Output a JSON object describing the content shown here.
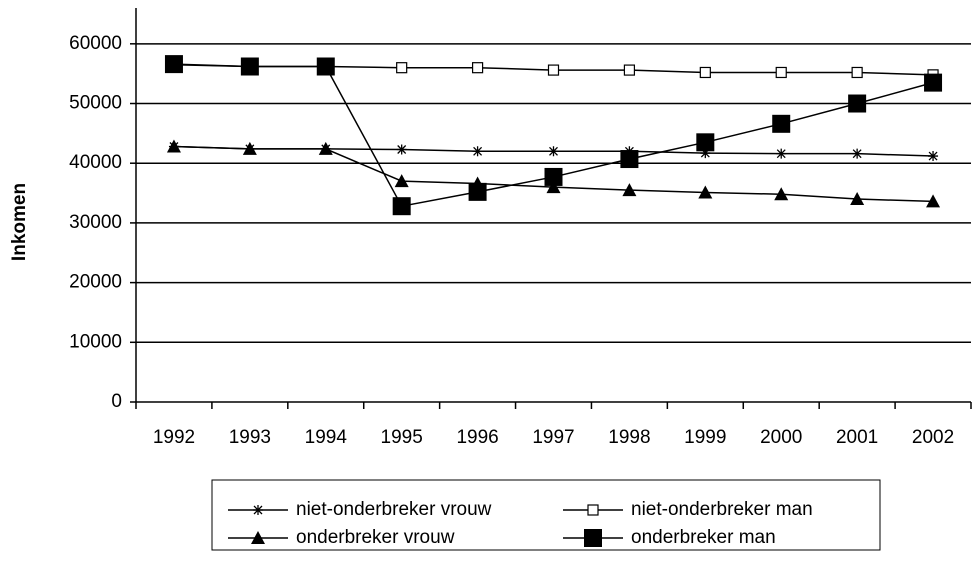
{
  "chart_data": {
    "type": "line",
    "y_label": "Inkomen",
    "categories": [
      "1992",
      "1993",
      "1994",
      "1995",
      "1996",
      "1997",
      "1998",
      "1999",
      "2000",
      "2001",
      "2002"
    ],
    "series": [
      {
        "name": "niet-onderbreker vrouw",
        "color": "#000000",
        "marker": "star",
        "values": [
          42800,
          42400,
          42400,
          42300,
          42000,
          42000,
          42000,
          41700,
          41600,
          41600,
          41200
        ]
      },
      {
        "name": "niet-onderbreker man",
        "color": "#000000",
        "marker": "square-open",
        "values": [
          56500,
          56200,
          56200,
          56000,
          56000,
          55600,
          55600,
          55200,
          55200,
          55200,
          54800
        ]
      },
      {
        "name": "onderbreker vrouw",
        "color": "#000000",
        "marker": "triangle",
        "values": [
          42800,
          42400,
          42400,
          37000,
          36600,
          36000,
          35500,
          35100,
          34800,
          34000,
          33600
        ]
      },
      {
        "name": "onderbreker man",
        "color": "#000000",
        "marker": "square",
        "values": [
          56600,
          56200,
          56200,
          32800,
          35200,
          37700,
          40700,
          43500,
          46600,
          50000,
          53500
        ]
      }
    ],
    "ylim": [
      0,
      66000
    ],
    "yticks": [
      0,
      10000,
      20000,
      30000,
      40000,
      50000,
      60000
    ],
    "grid": true
  }
}
